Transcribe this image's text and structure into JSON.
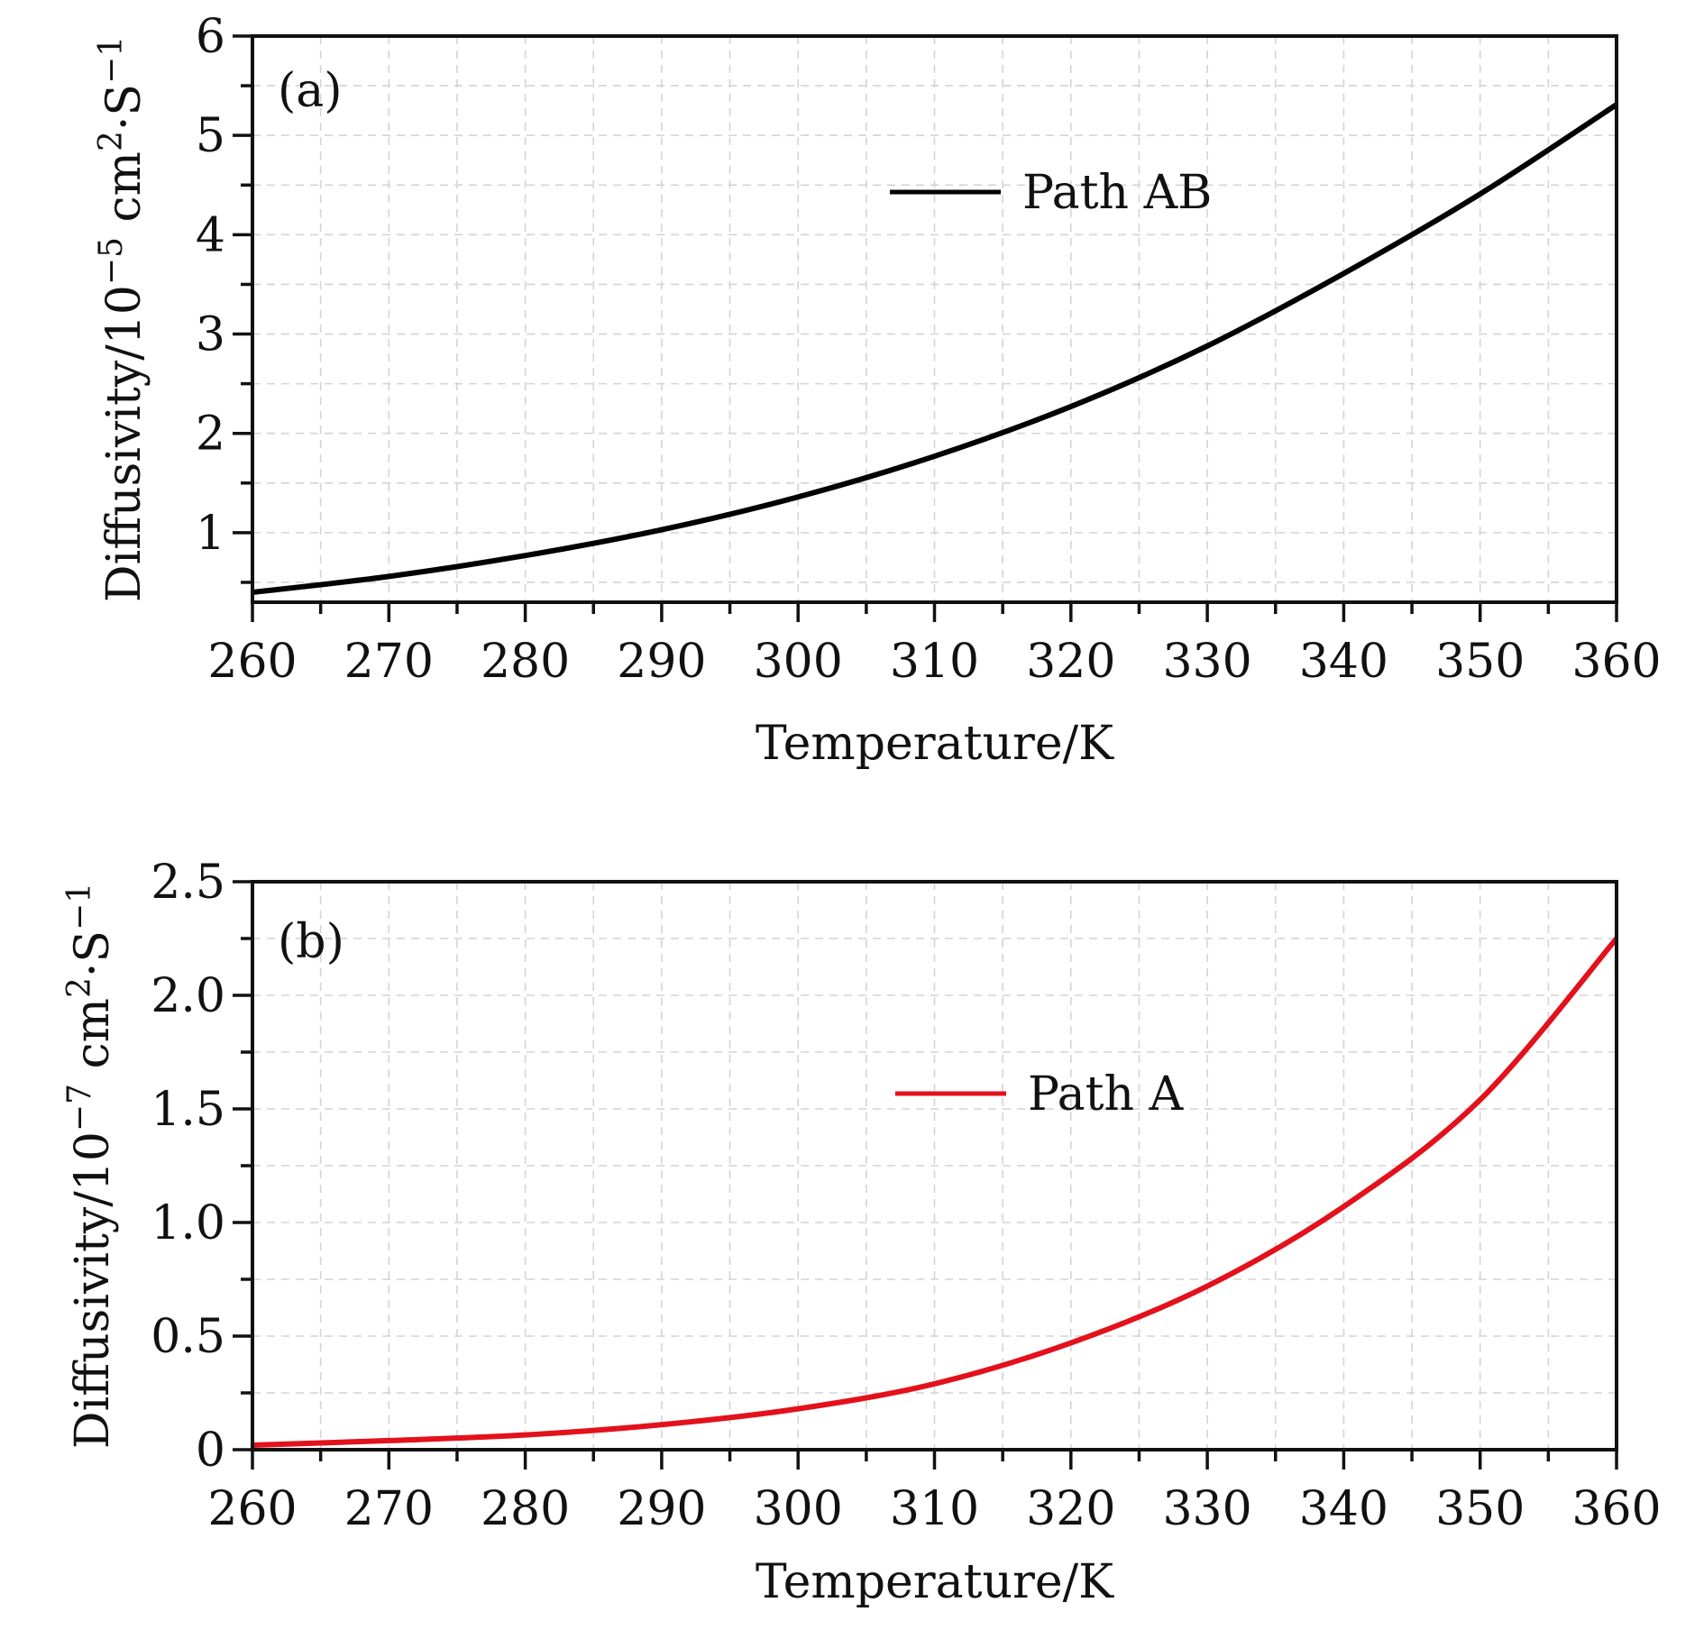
{
  "chart_data": [
    {
      "type": "line",
      "panel_label": "(a)",
      "xlabel": "Temperature/K",
      "ylabel": "Diffusivity/10",
      "ylabel_exponent": "−5",
      "ylabel_unit": "cm",
      "ylabel_unit_exponent": "2",
      "ylabel_unit_rest": "·S",
      "ylabel_unit_rest_exponent": "−1",
      "xlim": [
        260,
        360
      ],
      "ylim": [
        0.3,
        6
      ],
      "xticks": [
        260,
        270,
        280,
        290,
        300,
        310,
        320,
        330,
        340,
        350,
        360
      ],
      "xtick_labels": [
        "260",
        "270",
        "280",
        "290",
        "300",
        "310",
        "320",
        "330",
        "340",
        "350",
        "360"
      ],
      "yticks": [
        1,
        2,
        3,
        4,
        5,
        6
      ],
      "ytick_labels": [
        "1",
        "2",
        "3",
        "4",
        "5",
        "6"
      ],
      "grid": true,
      "legend_position": "upper-center",
      "series": [
        {
          "name": "Path AB",
          "color": "#000000",
          "x": [
            260,
            270,
            280,
            290,
            300,
            310,
            320,
            330,
            340,
            350,
            360
          ],
          "y": [
            0.4,
            0.56,
            0.77,
            1.03,
            1.36,
            1.77,
            2.27,
            2.88,
            3.61,
            4.41,
            5.31
          ]
        }
      ]
    },
    {
      "type": "line",
      "panel_label": "(b)",
      "xlabel": "Temperature/K",
      "ylabel": "Diffusivity/10",
      "ylabel_exponent": "−7",
      "ylabel_unit": "cm",
      "ylabel_unit_exponent": "2",
      "ylabel_unit_rest": "·S",
      "ylabel_unit_rest_exponent": "−1",
      "xlim": [
        260,
        360
      ],
      "ylim": [
        0,
        2.5
      ],
      "xticks": [
        260,
        270,
        280,
        290,
        300,
        310,
        320,
        330,
        340,
        350,
        360
      ],
      "xtick_labels": [
        "260",
        "270",
        "280",
        "290",
        "300",
        "310",
        "320",
        "330",
        "340",
        "350",
        "360"
      ],
      "yticks": [
        0,
        0.5,
        1.0,
        1.5,
        2.0,
        2.5
      ],
      "ytick_labels": [
        "0",
        "0.5",
        "1.0",
        "1.5",
        "2.0",
        "2.5"
      ],
      "grid": true,
      "legend_position": "upper-center",
      "series": [
        {
          "name": "Path A",
          "color": "#e3111b",
          "x": [
            260,
            270,
            280,
            290,
            300,
            310,
            320,
            330,
            340,
            350,
            360
          ],
          "y": [
            0.02,
            0.04,
            0.065,
            0.11,
            0.18,
            0.29,
            0.47,
            0.72,
            1.07,
            1.54,
            2.25
          ]
        }
      ]
    }
  ]
}
